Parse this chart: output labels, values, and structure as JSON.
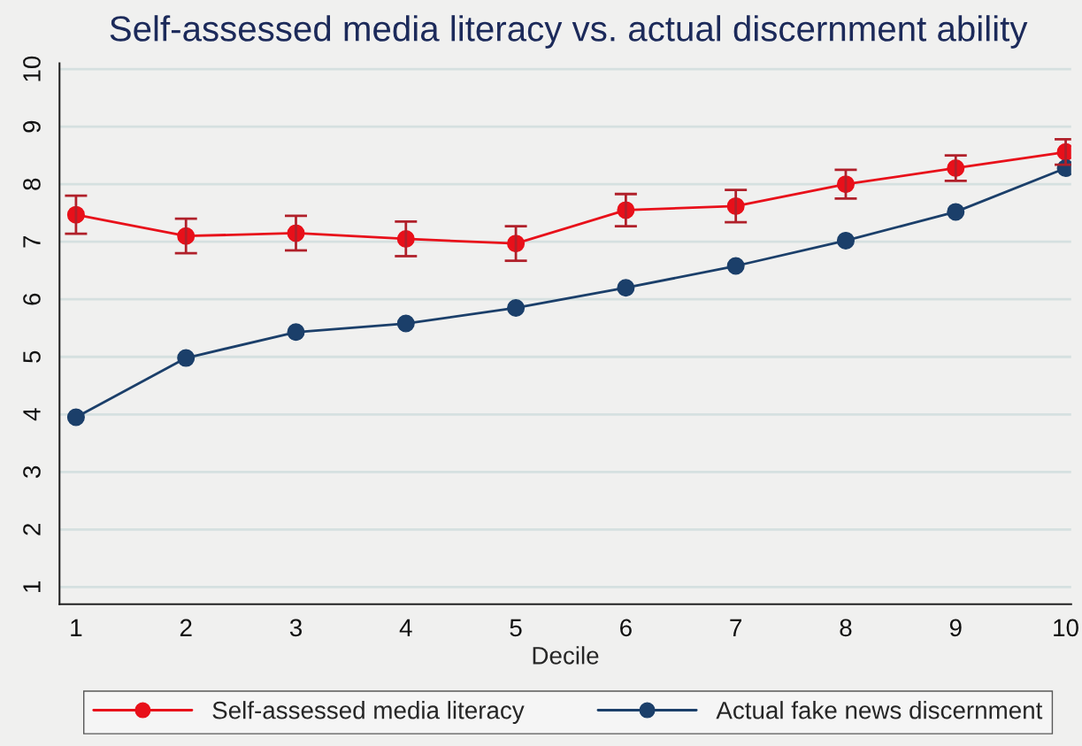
{
  "chart_data": {
    "type": "line",
    "title": "Self-assessed media literacy vs. actual discernment ability",
    "xlabel": "Decile",
    "x": [
      1,
      2,
      3,
      4,
      5,
      6,
      7,
      8,
      9,
      10
    ],
    "xlim": [
      0.85,
      10.05
    ],
    "xticks": [
      1,
      2,
      3,
      4,
      5,
      6,
      7,
      8,
      9,
      10
    ],
    "ylim": [
      0.7,
      10.1
    ],
    "yticks": [
      1,
      2,
      3,
      4,
      5,
      6,
      7,
      8,
      9,
      10
    ],
    "grid": "y",
    "legend": "bottom",
    "marker": "circle",
    "line_style": "solid",
    "series": [
      {
        "name": "Self-assessed media literacy",
        "color": "#e8101a",
        "values": [
          7.47,
          7.1,
          7.15,
          7.05,
          6.97,
          7.55,
          7.62,
          8.0,
          8.28,
          8.56
        ],
        "errors": [
          0.33,
          0.3,
          0.3,
          0.3,
          0.3,
          0.28,
          0.28,
          0.25,
          0.22,
          0.22
        ]
      },
      {
        "name": "Actual fake news discernment",
        "color": "#1b3f6a",
        "values": [
          3.95,
          4.98,
          5.43,
          5.58,
          5.85,
          6.2,
          6.58,
          7.02,
          7.52,
          8.28
        ]
      }
    ]
  }
}
